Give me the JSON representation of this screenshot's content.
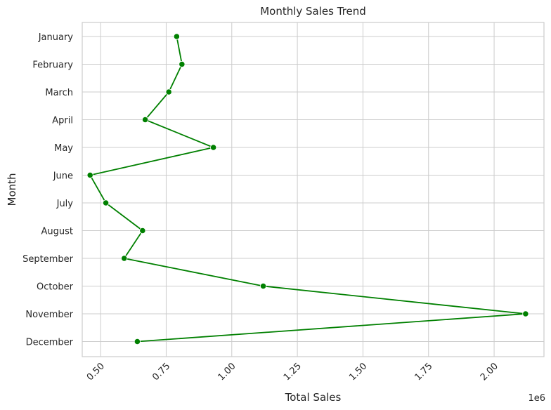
{
  "chart_data": {
    "type": "line",
    "title": "Monthly Sales Trend",
    "xlabel": "Total Sales",
    "ylabel": "Month",
    "x_offset_label": "1e6",
    "x_ticks": [
      0.5,
      0.75,
      1.0,
      1.25,
      1.5,
      1.75,
      2.0
    ],
    "x_tick_labels": [
      "0.50",
      "0.75",
      "1.00",
      "1.25",
      "1.50",
      "1.75",
      "2.00"
    ],
    "xlim": [
      0.43,
      2.19
    ],
    "categories": [
      "January",
      "February",
      "March",
      "April",
      "May",
      "June",
      "July",
      "August",
      "September",
      "October",
      "November",
      "December"
    ],
    "x": [
      0.79,
      0.81,
      0.76,
      0.67,
      0.93,
      0.46,
      0.52,
      0.66,
      0.59,
      1.12,
      2.12,
      0.64
    ],
    "grid": true,
    "colors": {
      "line": "#008000",
      "grid": "#cccccc",
      "frame": "#cccccc"
    }
  }
}
